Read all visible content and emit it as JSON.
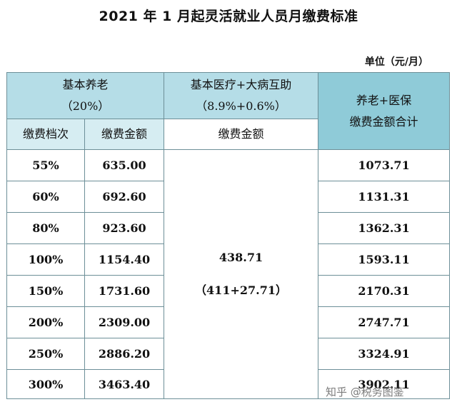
{
  "title": "2021 年 1 月起灵活就业人员月缴费标准",
  "unit": "单位（元/月）",
  "headers": {
    "pension": "基本养老",
    "pension_rate": "（20%）",
    "medical": "基本医疗+大病互助",
    "medical_rate": "（8.9%+0.6%）",
    "total_line1": "养老+医保",
    "total_line2": "缴费金额合计",
    "grade": "缴费档次",
    "pension_amount": "缴费金额",
    "medical_amount": "缴费金额"
  },
  "medical_value": "438.71",
  "medical_breakdown": "（411+27.71）",
  "rows": [
    {
      "grade": "55%",
      "pension": "635.00",
      "total": "1073.71"
    },
    {
      "grade": "60%",
      "pension": "692.60",
      "total": "1131.31"
    },
    {
      "grade": "80%",
      "pension": "923.60",
      "total": "1362.31"
    },
    {
      "grade": "100%",
      "pension": "1154.40",
      "total": "1593.11"
    },
    {
      "grade": "150%",
      "pension": "1731.60",
      "total": "2170.31"
    },
    {
      "grade": "200%",
      "pension": "2309.00",
      "total": "2747.71"
    },
    {
      "grade": "250%",
      "pension": "2886.20",
      "total": "3324.91"
    },
    {
      "grade": "300%",
      "pension": "3463.40",
      "total": "3902.11"
    }
  ],
  "watermark": "知乎 @税务图鉴"
}
